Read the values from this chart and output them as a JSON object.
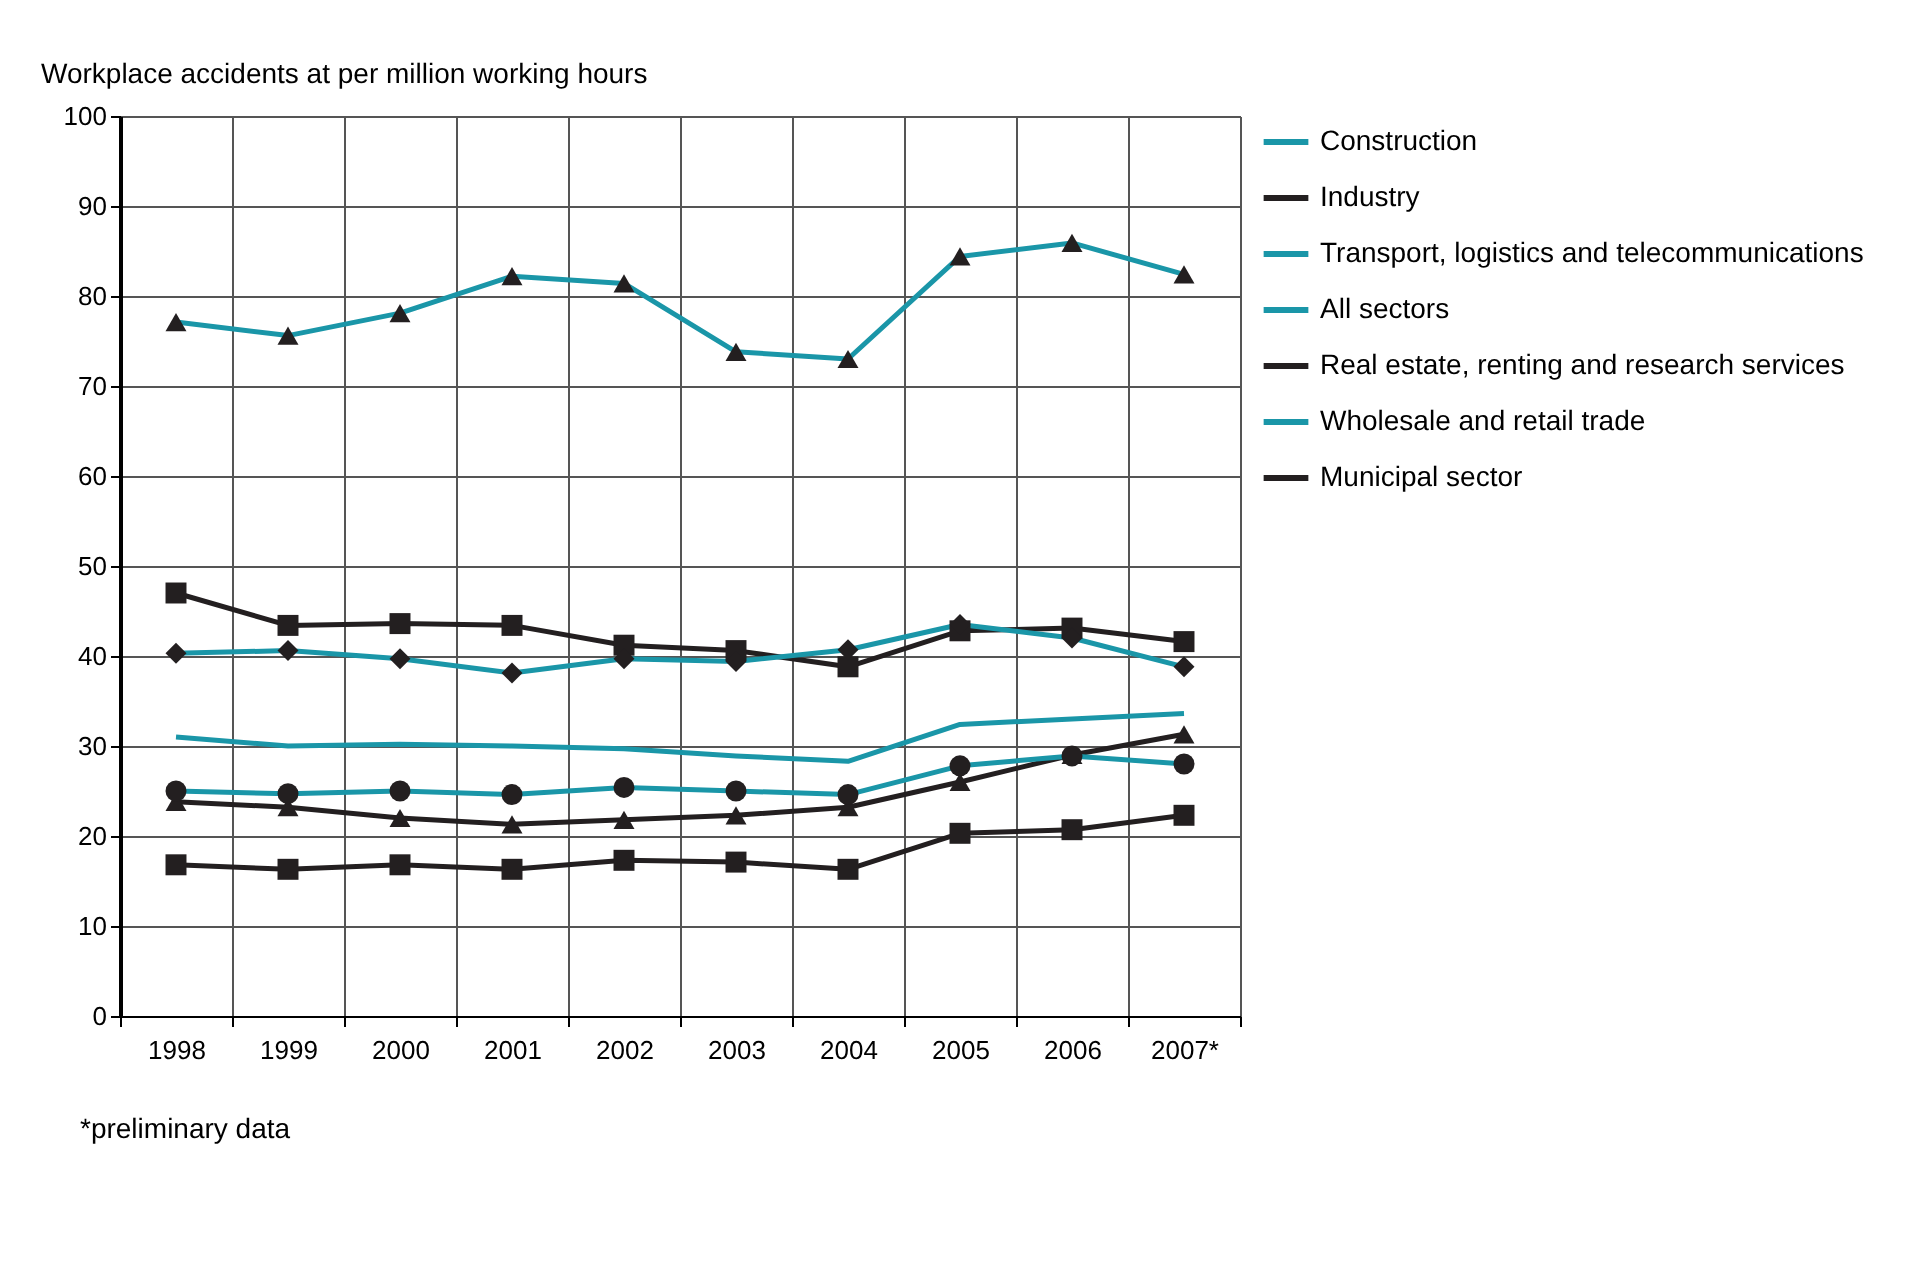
{
  "chart_data": {
    "type": "line",
    "ylabel": "Workplace accidents at per million working hours",
    "categories": [
      "1998",
      "1999",
      "2000",
      "2001",
      "2002",
      "2003",
      "2004",
      "2005",
      "2006",
      "2007*"
    ],
    "ylim": [
      0,
      100
    ],
    "yticks": [
      0,
      10,
      20,
      30,
      40,
      50,
      60,
      70,
      80,
      90,
      100
    ],
    "grid": true,
    "legend": "right",
    "annotations": [
      "*preliminary data"
    ],
    "series": [
      {
        "name": "Construction",
        "color": "#1a96a8",
        "marker": "triangle",
        "values": [
          77.1,
          75.6,
          78.1,
          82.2,
          81.4,
          73.8,
          73.0,
          84.4,
          85.9,
          82.4
        ]
      },
      {
        "name": "Industry",
        "color": "#231f20",
        "marker": "square",
        "values": [
          47.0,
          43.4,
          43.6,
          43.4,
          41.2,
          40.6,
          38.8,
          42.8,
          43.1,
          41.6
        ]
      },
      {
        "name": "Transport, logistics and telecommunications",
        "color": "#1a96a8",
        "marker": "diamond",
        "values": [
          40.3,
          40.6,
          39.7,
          38.1,
          39.7,
          39.4,
          40.7,
          43.5,
          42.0,
          38.8
        ]
      },
      {
        "name": "All sectors",
        "color": "#1a96a8",
        "marker": "none",
        "values": [
          31.0,
          30.0,
          30.2,
          30.0,
          29.7,
          28.9,
          28.3,
          32.4,
          33.0,
          33.6
        ]
      },
      {
        "name": "Real estate, renting and research services",
        "color": "#231f20",
        "marker": "triangle",
        "values": [
          23.8,
          23.2,
          22.0,
          21.3,
          21.8,
          22.3,
          23.2,
          26.0,
          29.0,
          31.3
        ]
      },
      {
        "name": "Wholesale and retail trade",
        "color": "#1a96a8",
        "marker": "circle",
        "values": [
          25.0,
          24.7,
          25.0,
          24.6,
          25.4,
          25.0,
          24.6,
          27.8,
          28.9,
          28.0
        ]
      },
      {
        "name": "Municipal sector",
        "color": "#231f20",
        "marker": "square",
        "values": [
          16.8,
          16.3,
          16.8,
          16.3,
          17.3,
          17.1,
          16.3,
          20.3,
          20.7,
          22.3
        ]
      }
    ]
  }
}
